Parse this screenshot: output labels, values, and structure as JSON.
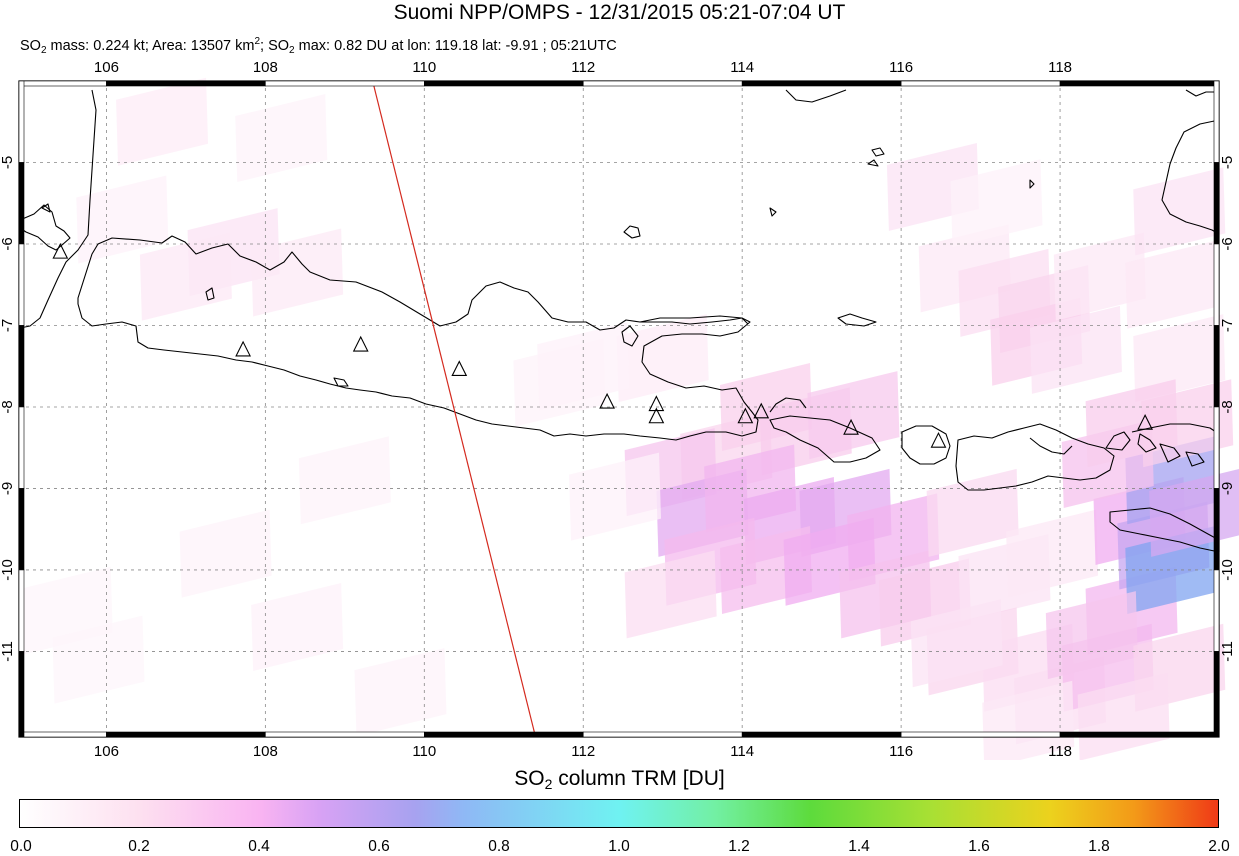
{
  "header": {
    "title": "Suomi NPP/OMPS - 12/31/2015 05:21-07:04 UT",
    "subtitle": {
      "p1": "SO",
      "p1_sub": "2",
      "p2": " mass: 0.224 kt; Area: 13507 km",
      "p2_sup": "2",
      "p3": "; SO",
      "p3_sub": "2",
      "p4": " max: 0.82 DU at lon: 119.18 lat: -9.91 ; 05:21UTC"
    }
  },
  "map": {
    "lon_range": [
      104.9,
      120.0
    ],
    "lat_range": [
      -12.05,
      -4.0
    ],
    "lon_ticks": [
      106,
      108,
      110,
      112,
      114,
      116,
      118
    ],
    "lat_ticks": [
      -5,
      -6,
      -7,
      -8,
      -9,
      -10,
      -11
    ],
    "grid": true,
    "colors": {
      "coast": "#000000",
      "track": "#d42a1f",
      "grid": "#888888"
    },
    "track_line": [
      [
        109.35,
        -4.0
      ],
      [
        111.4,
        -12.05
      ]
    ],
    "volcano_icon": "triangle-icon",
    "volcanoes": [
      [
        105.42,
        -6.1
      ],
      [
        107.72,
        -7.3
      ],
      [
        109.2,
        -7.24
      ],
      [
        110.44,
        -7.54
      ],
      [
        112.3,
        -7.94
      ],
      [
        112.92,
        -7.97
      ],
      [
        112.92,
        -8.12
      ],
      [
        114.04,
        -8.12
      ],
      [
        114.24,
        -8.06
      ],
      [
        115.37,
        -8.26
      ],
      [
        116.47,
        -8.42
      ],
      [
        119.07,
        -8.2
      ]
    ],
    "so2_pixels": [
      [
        106.7,
        -4.5,
        0.08
      ],
      [
        108.2,
        -4.7,
        0.05
      ],
      [
        106.2,
        -5.7,
        0.06
      ],
      [
        107.6,
        -6.1,
        0.12
      ],
      [
        107.0,
        -6.4,
        0.1
      ],
      [
        108.4,
        -6.35,
        0.09
      ],
      [
        113.0,
        -7.4,
        0.08
      ],
      [
        111.7,
        -7.7,
        0.05
      ],
      [
        109.0,
        -8.9,
        0.05
      ],
      [
        107.5,
        -9.8,
        0.05
      ],
      [
        105.5,
        -10.5,
        0.04
      ],
      [
        108.4,
        -10.7,
        0.06
      ],
      [
        109.7,
        -11.5,
        0.05
      ],
      [
        105.9,
        -11.1,
        0.04
      ],
      [
        116.4,
        -5.3,
        0.12
      ],
      [
        116.8,
        -6.3,
        0.1
      ],
      [
        117.2,
        -5.5,
        0.06
      ],
      [
        117.3,
        -6.6,
        0.14
      ],
      [
        117.8,
        -6.8,
        0.18
      ],
      [
        117.7,
        -7.2,
        0.2
      ],
      [
        118.2,
        -7.3,
        0.12
      ],
      [
        118.5,
        -6.4,
        0.1
      ],
      [
        119.5,
        -5.6,
        0.12
      ],
      [
        119.4,
        -6.5,
        0.1
      ],
      [
        119.5,
        -7.4,
        0.1
      ],
      [
        112.0,
        -7.5,
        0.06
      ],
      [
        113.8,
        -8.6,
        0.18
      ],
      [
        114.3,
        -8.0,
        0.2
      ],
      [
        114.8,
        -8.3,
        0.22
      ],
      [
        115.4,
        -8.1,
        0.24
      ],
      [
        113.1,
        -8.8,
        0.26
      ],
      [
        113.5,
        -9.3,
        0.45
      ],
      [
        114.1,
        -9.0,
        0.35
      ],
      [
        114.6,
        -9.4,
        0.42
      ],
      [
        115.3,
        -9.3,
        0.45
      ],
      [
        115.9,
        -9.6,
        0.36
      ],
      [
        113.6,
        -9.9,
        0.32
      ],
      [
        114.3,
        -10.0,
        0.3
      ],
      [
        115.1,
        -9.9,
        0.4
      ],
      [
        115.8,
        -10.3,
        0.28
      ],
      [
        116.3,
        -10.4,
        0.22
      ],
      [
        116.9,
        -9.3,
        0.16
      ],
      [
        117.3,
        -10.1,
        0.12
      ],
      [
        117.9,
        -9.8,
        0.1
      ],
      [
        116.9,
        -11.0,
        0.18
      ],
      [
        117.6,
        -11.2,
        0.15
      ],
      [
        118.0,
        -11.6,
        0.14
      ],
      [
        118.6,
        -11.2,
        0.3
      ],
      [
        118.9,
        -10.5,
        0.34
      ],
      [
        119.0,
        -9.4,
        0.4
      ],
      [
        119.3,
        -9.7,
        0.55
      ],
      [
        119.4,
        -10.0,
        0.82
      ],
      [
        119.4,
        -8.9,
        0.68
      ],
      [
        119.7,
        -9.3,
        0.5
      ],
      [
        118.6,
        -8.7,
        0.28
      ],
      [
        118.9,
        -8.2,
        0.22
      ],
      [
        119.6,
        -8.2,
        0.2
      ],
      [
        118.4,
        -10.8,
        0.26
      ],
      [
        119.5,
        -11.2,
        0.18
      ],
      [
        118.8,
        -11.8,
        0.14
      ],
      [
        117.6,
        -11.9,
        0.1
      ],
      [
        113.1,
        -10.3,
        0.14
      ],
      [
        112.4,
        -9.1,
        0.06
      ],
      [
        116.7,
        -10.9,
        0.12
      ]
    ]
  },
  "colorbar": {
    "title_main": "SO",
    "title_sub": "2",
    "title_rest": " column TRM [DU]",
    "ticks": [
      "0.0",
      "0.2",
      "0.4",
      "0.6",
      "0.8",
      "1.0",
      "1.2",
      "1.4",
      "1.6",
      "1.8",
      "2.0"
    ],
    "range": [
      0.0,
      2.0
    ]
  }
}
